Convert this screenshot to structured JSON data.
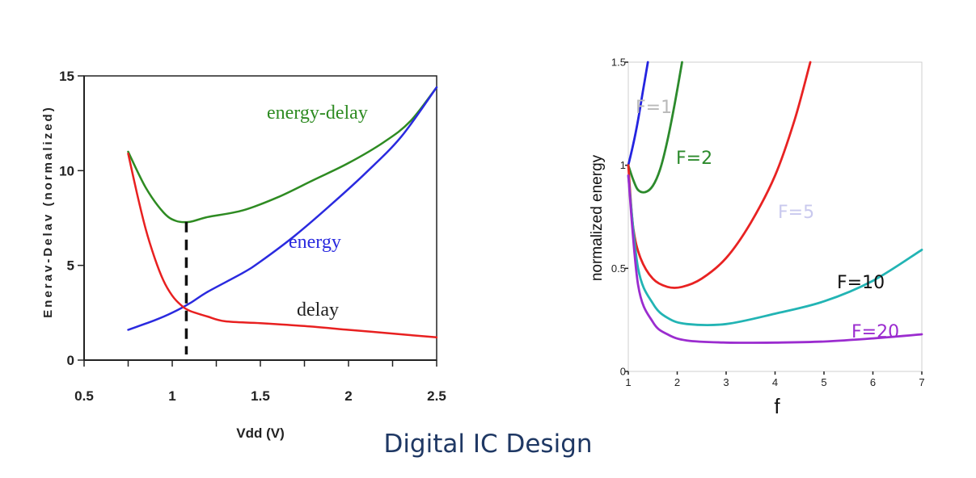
{
  "footer": {
    "text": "Digital IC Design"
  },
  "chart_data": [
    {
      "type": "line",
      "title": "",
      "xlabel": "Vdd (V)",
      "ylabel": "Enerav-Delav (normalized)",
      "xlim": [
        0.5,
        2.5
      ],
      "ylim": [
        0,
        15
      ],
      "xticks": [
        "0.5",
        "1",
        "1.5",
        "2",
        "2.5"
      ],
      "yticks": [
        "0",
        "5",
        "10",
        "15"
      ],
      "grid": false,
      "series": [
        {
          "name": "energy-delay",
          "color": "#2e8b22",
          "points": [
            [
              0.75,
              11
            ],
            [
              0.85,
              9.1
            ],
            [
              0.95,
              7.8
            ],
            [
              1.02,
              7.35
            ],
            [
              1.1,
              7.3
            ],
            [
              1.2,
              7.55
            ],
            [
              1.4,
              7.9
            ],
            [
              1.6,
              8.6
            ],
            [
              1.8,
              9.5
            ],
            [
              2.0,
              10.4
            ],
            [
              2.2,
              11.5
            ],
            [
              2.35,
              12.6
            ],
            [
              2.5,
              14.4
            ]
          ]
        },
        {
          "name": "energy",
          "color": "#2a2adf",
          "points": [
            [
              0.75,
              1.6
            ],
            [
              0.9,
              2.1
            ],
            [
              1.0,
              2.5
            ],
            [
              1.1,
              3.0
            ],
            [
              1.2,
              3.6
            ],
            [
              1.4,
              4.6
            ],
            [
              1.5,
              5.2
            ],
            [
              1.7,
              6.6
            ],
            [
              1.9,
              8.2
            ],
            [
              2.1,
              9.9
            ],
            [
              2.3,
              11.8
            ],
            [
              2.5,
              14.4
            ]
          ]
        },
        {
          "name": "delay",
          "color": "#e82020",
          "points": [
            [
              0.75,
              10.9
            ],
            [
              0.8,
              8.8
            ],
            [
              0.85,
              6.9
            ],
            [
              0.9,
              5.4
            ],
            [
              0.95,
              4.2
            ],
            [
              1.0,
              3.4
            ],
            [
              1.05,
              2.9
            ],
            [
              1.1,
              2.6
            ],
            [
              1.2,
              2.3
            ],
            [
              1.3,
              2.05
            ],
            [
              1.5,
              1.95
            ],
            [
              1.75,
              1.8
            ],
            [
              2.0,
              1.6
            ],
            [
              2.25,
              1.4
            ],
            [
              2.5,
              1.2
            ]
          ]
        }
      ],
      "marker": {
        "x": 1.08,
        "y_from": 0.3,
        "y_to": 7.3,
        "style": "dashed"
      }
    },
    {
      "type": "line",
      "title": "",
      "xlabel": "f",
      "ylabel": "normalized energy",
      "xlim": [
        1,
        7
      ],
      "ylim": [
        0,
        1.5
      ],
      "xticks": [
        "1",
        "2",
        "3",
        "4",
        "5",
        "6",
        "7"
      ],
      "yticks": [
        "0",
        "0.5",
        "1",
        "1.5"
      ],
      "grid": false,
      "series": [
        {
          "name": "F=1",
          "color": "#2424e0",
          "points": [
            [
              1.0,
              1.0
            ],
            [
              1.1,
              1.1
            ],
            [
              1.2,
              1.22
            ],
            [
              1.3,
              1.36
            ],
            [
              1.4,
              1.5
            ]
          ]
        },
        {
          "name": "F=2",
          "color": "#2c8a2c",
          "points": [
            [
              1.0,
              1.0
            ],
            [
              1.1,
              0.93
            ],
            [
              1.2,
              0.88
            ],
            [
              1.35,
              0.87
            ],
            [
              1.5,
              0.9
            ],
            [
              1.65,
              0.98
            ],
            [
              1.8,
              1.12
            ],
            [
              1.95,
              1.3
            ],
            [
              2.1,
              1.5
            ]
          ]
        },
        {
          "name": "F=5",
          "color": "#e82222",
          "points": [
            [
              1.0,
              1.0
            ],
            [
              1.1,
              0.7
            ],
            [
              1.25,
              0.55
            ],
            [
              1.5,
              0.45
            ],
            [
              1.8,
              0.41
            ],
            [
              2.1,
              0.41
            ],
            [
              2.5,
              0.45
            ],
            [
              3.0,
              0.55
            ],
            [
              3.5,
              0.72
            ],
            [
              4.0,
              0.95
            ],
            [
              4.4,
              1.22
            ],
            [
              4.72,
              1.5
            ]
          ]
        },
        {
          "name": "F=10",
          "color": "#22b4b4",
          "points": [
            [
              1.0,
              0.95
            ],
            [
              1.2,
              0.5
            ],
            [
              1.5,
              0.33
            ],
            [
              1.8,
              0.26
            ],
            [
              2.2,
              0.23
            ],
            [
              3.0,
              0.23
            ],
            [
              4.0,
              0.28
            ],
            [
              5.0,
              0.34
            ],
            [
              6.0,
              0.44
            ],
            [
              7.0,
              0.59
            ]
          ]
        },
        {
          "name": "F=20",
          "color": "#9b2ccf",
          "points": [
            [
              1.0,
              0.95
            ],
            [
              1.2,
              0.42
            ],
            [
              1.5,
              0.24
            ],
            [
              1.8,
              0.18
            ],
            [
              2.2,
              0.15
            ],
            [
              3.0,
              0.14
            ],
            [
              4.0,
              0.14
            ],
            [
              5.0,
              0.145
            ],
            [
              6.0,
              0.16
            ],
            [
              7.0,
              0.18
            ]
          ]
        }
      ]
    }
  ],
  "annotations": {
    "left": {
      "energy_delay": "energy-delay",
      "energy": "energy",
      "delay": "delay"
    },
    "right": {
      "f1": "F=1",
      "f2": "F=2",
      "f5": "F=5",
      "f10": "F=10",
      "f20": "F=20"
    }
  }
}
